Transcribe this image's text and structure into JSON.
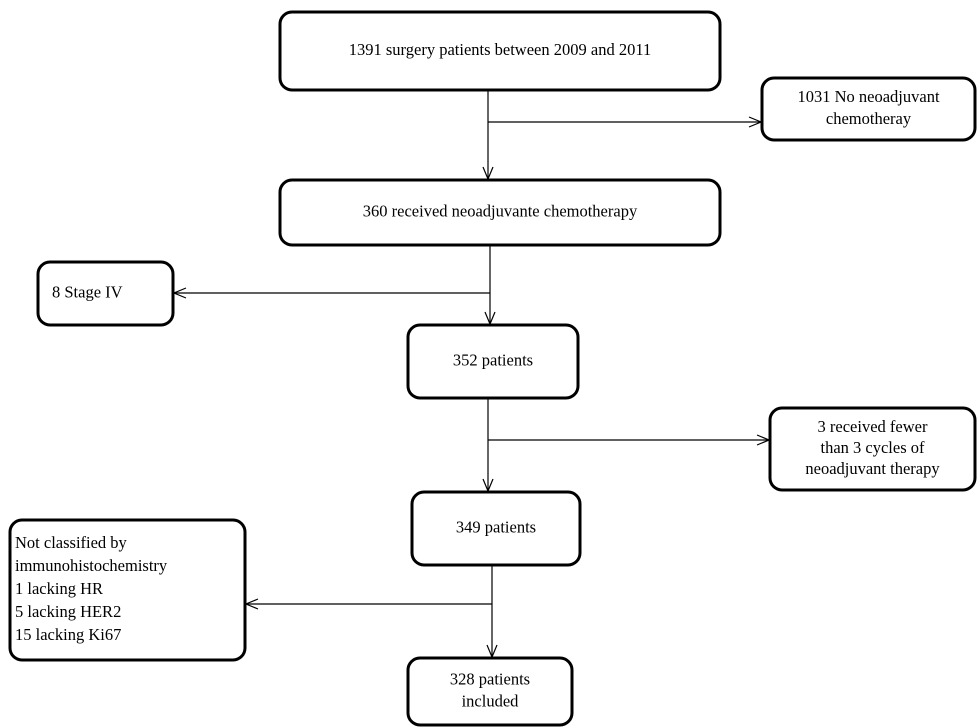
{
  "nodes": [
    {
      "lines": [
        "1391 surgery patients between 2009 and 2011"
      ]
    },
    {
      "lines": [
        "1031 No neoadjuvant",
        "chemotheray"
      ]
    },
    {
      "lines": [
        "360 received neoadjuvante chemotherapy"
      ]
    },
    {
      "lines": [
        "8 Stage IV"
      ]
    },
    {
      "lines": [
        "352 patients"
      ]
    },
    {
      "lines": [
        "3 received fewer",
        "than 3 cycles of",
        "neoadjuvant therapy"
      ]
    },
    {
      "lines": [
        "349 patients"
      ]
    },
    {
      "lines": [
        "Not classified by",
        "immunohistochemistry",
        "1   lacking HR",
        "5   lacking HER2",
        "15 lacking Ki67"
      ]
    },
    {
      "lines": [
        "328 patients",
        "included"
      ]
    }
  ]
}
